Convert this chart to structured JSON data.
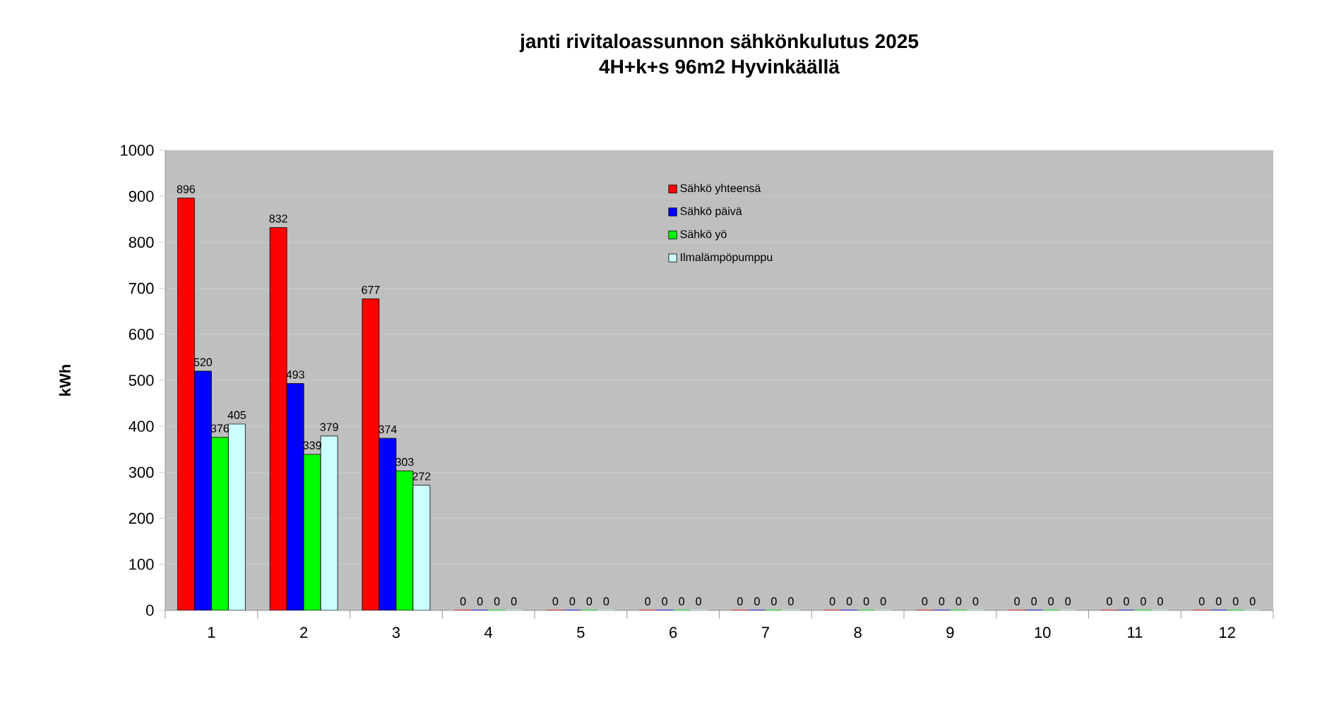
{
  "chart_data": {
    "type": "bar",
    "title": "janti rivitaloassunnon sähkönkulutus 2025",
    "subtitle": "4H+k+s 96m2 Hyvinkäällä",
    "ylabel": "kWh",
    "categories": [
      "1",
      "2",
      "3",
      "4",
      "5",
      "6",
      "7",
      "8",
      "9",
      "10",
      "11",
      "12"
    ],
    "series": [
      {
        "name": "Sähkö yhteensä",
        "color": "#ff0000",
        "values": [
          896,
          832,
          677,
          0,
          0,
          0,
          0,
          0,
          0,
          0,
          0,
          0
        ]
      },
      {
        "name": "Sähkö päivä",
        "color": "#0000ff",
        "values": [
          520,
          493,
          374,
          0,
          0,
          0,
          0,
          0,
          0,
          0,
          0,
          0
        ]
      },
      {
        "name": "Sähkö yö",
        "color": "#00ff00",
        "values": [
          376,
          339,
          303,
          0,
          0,
          0,
          0,
          0,
          0,
          0,
          0,
          0
        ]
      },
      {
        "name": "Ilmalämpöpumppu",
        "color": "#ccffff",
        "values": [
          405,
          379,
          272,
          0,
          0,
          0,
          0,
          0,
          0,
          0,
          0,
          0
        ]
      }
    ],
    "ylim": [
      0,
      1000
    ],
    "yticks": [
      0,
      100,
      200,
      300,
      400,
      500,
      600,
      700,
      800,
      900,
      1000
    ],
    "grid": "y",
    "legend": "top",
    "data_labels": true
  }
}
